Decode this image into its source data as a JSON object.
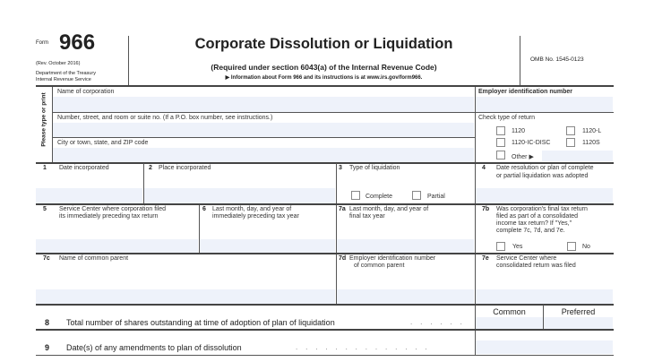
{
  "header": {
    "form_word": "Form",
    "form_number": "966",
    "revision": "(Rev. October 2016)",
    "dept_line1": "Department of the Treasury",
    "dept_line2": "Internal Revenue Service",
    "title": "Corporate Dissolution or Liquidation",
    "subtitle": "(Required under section 6043(a) of the Internal Revenue Code)",
    "info": "▶ Information about Form 966 and its instructions is at www.irs.gov/form966.",
    "omb": "OMB No. 1545-0123"
  },
  "side_label": "Please type or print",
  "fields": {
    "name": "Name of corporation",
    "ein": "Employer identification number",
    "street": "Number, street, and room or suite no. (If a P.O. box number, see instructions.)",
    "city": "City or town, state, and ZIP code",
    "check_type": "Check type of return",
    "return_types": [
      "1120",
      "1120-L",
      "1120-IC-DISC",
      "1120S",
      "Other ▶"
    ],
    "l1_num": "1",
    "l1": "Date incorporated",
    "l2_num": "2",
    "l2": "Place incorporated",
    "l3_num": "3",
    "l3": "Type of liquidation",
    "l3_opts": [
      "Complete",
      "Partial"
    ],
    "l4_num": "4",
    "l4a": "Date resolution or plan of complete",
    "l4b": "or partial liquidation was adopted",
    "l5_num": "5",
    "l5a": "Service Center where corporation filed",
    "l5b": "its immediately preceding tax return",
    "l6_num": "6",
    "l6a": "Last month, day, and year of",
    "l6b": "immediately preceding tax year",
    "l7a_num": "7a",
    "l7a_a": "Last month, day, and year of",
    "l7a_b": "final tax year",
    "l7b_num": "7b",
    "l7b_a": "Was corporation's final tax return",
    "l7b_b": "filed as part of a consolidated",
    "l7b_c": "income tax return? If \"Yes,\"",
    "l7b_d": "complete 7c, 7d, and 7e.",
    "l7b_opts": [
      "Yes",
      "No"
    ],
    "l7c_num": "7c",
    "l7c": "Name of common parent",
    "l7d_num": "7d",
    "l7d_a": "Employer identification number",
    "l7d_b": "of common parent",
    "l7e_num": "7e",
    "l7e_a": "Service Center where",
    "l7e_b": "consolidated return was filed",
    "l8_num": "8",
    "l8": "Total number of shares outstanding at time of adoption of plan of liquidation",
    "common": "Common",
    "preferred": "Preferred",
    "l9_num": "9",
    "l9": "Date(s) of any amendments to plan of dissolution",
    "dots": ".    .    .    .    .    .",
    "dots9": ".    .    .    .    .    .    .    .    .    .    .    .    .    ."
  }
}
